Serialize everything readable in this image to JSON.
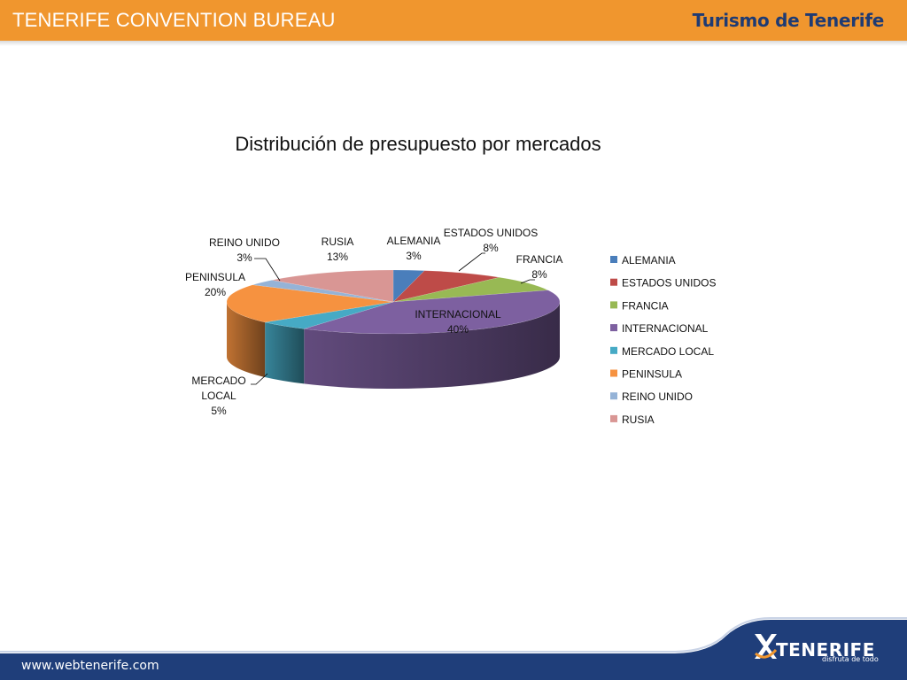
{
  "header": {
    "title": "TENERIFE CONVENTION BUREAU",
    "brand": "Turismo de Tenerife"
  },
  "footer": {
    "url": "www.webtenerife.com",
    "logo_text": "TENERIFE",
    "logo_tagline": "disfruta de todo"
  },
  "colors": {
    "header_bg": "#f0962e",
    "footer_bg": "#1f3e7a",
    "brand_blue": "#1f3b73"
  },
  "chart_data": {
    "type": "pie",
    "title": "Distribución de presupuesto por mercados",
    "legend_placement": "right",
    "slices": [
      {
        "name": "ALEMANIA",
        "value": 3,
        "label": "3%",
        "color": "#4a7ebb"
      },
      {
        "name": "ESTADOS UNIDOS",
        "value": 8,
        "label": "8%",
        "color": "#be4b48"
      },
      {
        "name": "FRANCIA",
        "value": 8,
        "label": "8%",
        "color": "#98b954"
      },
      {
        "name": "INTERNACIONAL",
        "value": 40,
        "label": "40%",
        "color": "#7d60a0"
      },
      {
        "name": "MERCADO LOCAL",
        "value": 5,
        "label": "5%",
        "color": "#46aac5"
      },
      {
        "name": "PENINSULA",
        "value": 20,
        "label": "20%",
        "color": "#f69240"
      },
      {
        "name": "REINO UNIDO",
        "value": 3,
        "label": "3%",
        "color": "#95b3d7"
      },
      {
        "name": "RUSIA",
        "value": 13,
        "label": "13%",
        "color": "#d99694"
      }
    ]
  }
}
